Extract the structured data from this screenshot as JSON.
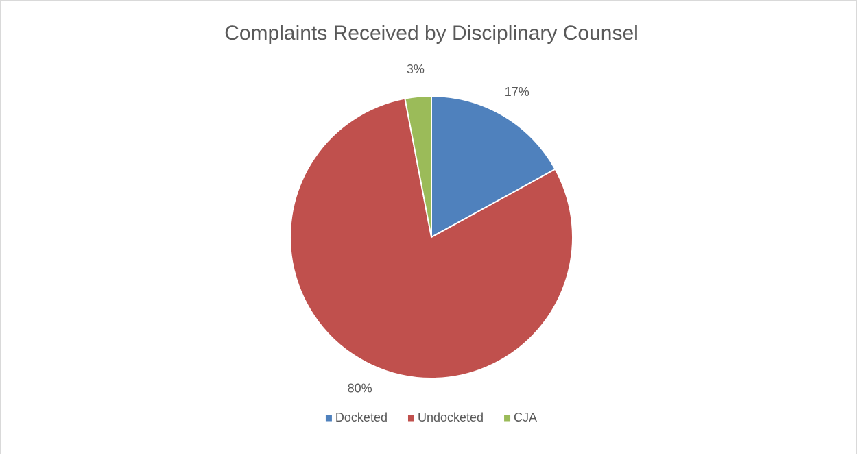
{
  "chart_data": {
    "type": "pie",
    "title": "Complaints Received by Disciplinary Counsel",
    "categories": [
      "Docketed",
      "Undocketed",
      "CJA"
    ],
    "values": [
      17,
      80,
      3
    ],
    "value_labels": [
      "17%",
      "80%",
      "3%"
    ],
    "colors": [
      "#4f81bd",
      "#c0504d",
      "#9bbb59"
    ],
    "legend": "bottom"
  }
}
